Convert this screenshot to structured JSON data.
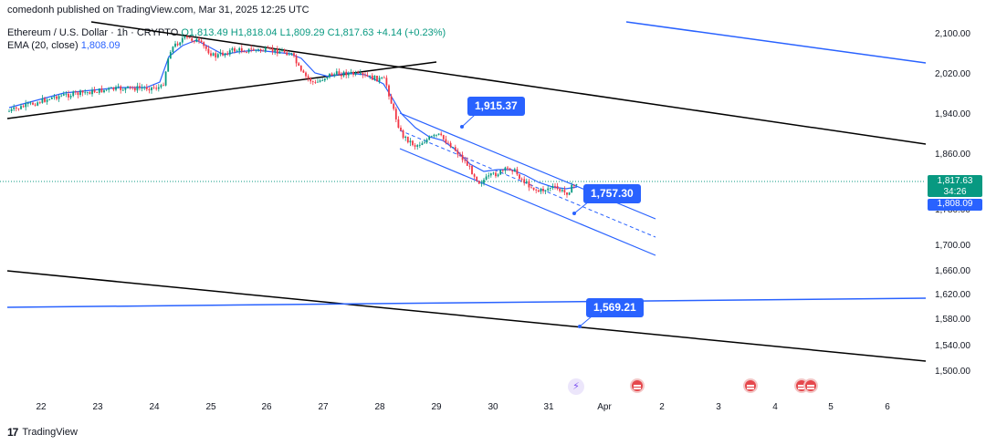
{
  "header": {
    "published_line": "comedonh published on TradingView.com, Mar 31, 2025 12:25 UTC"
  },
  "legend": {
    "symbol": "Ethereum / U.S. Dollar · 1h · CRYPTO",
    "ohlc": "O1,813.49  H1,818.04  L1,809.29  C1,817.63  +4.14 (+0.23%)",
    "ema_label": "EMA (20, close)",
    "ema_value": "1,808.09"
  },
  "y_axis": {
    "ticks": [
      "2,100.00",
      "2,020.00",
      "1,940.00",
      "1,860.00",
      "1,780.00",
      "1,700.00",
      "1,660.00",
      "1,620.00",
      "1,580.00",
      "1,540.00",
      "1,500.00"
    ]
  },
  "x_axis": {
    "ticks": [
      "22",
      "23",
      "24",
      "25",
      "26",
      "27",
      "28",
      "29",
      "30",
      "31",
      "Apr",
      "2",
      "3",
      "4",
      "5",
      "6"
    ]
  },
  "price_tags": {
    "last_price": "1,817.63",
    "countdown": "34:26",
    "ema_price": "1,808.09",
    "last_color": "#089981",
    "ema_color": "#2962ff"
  },
  "callouts": {
    "high": "1,915.37",
    "mid": "1,757.30",
    "low": "1,569.21"
  },
  "footer": {
    "logo_text": "TradingView"
  },
  "colors": {
    "up": "#089981",
    "down": "#f23645",
    "trendline_black": "#000000",
    "trendline_blue": "#2962ff",
    "ema": "#2962ff"
  }
}
